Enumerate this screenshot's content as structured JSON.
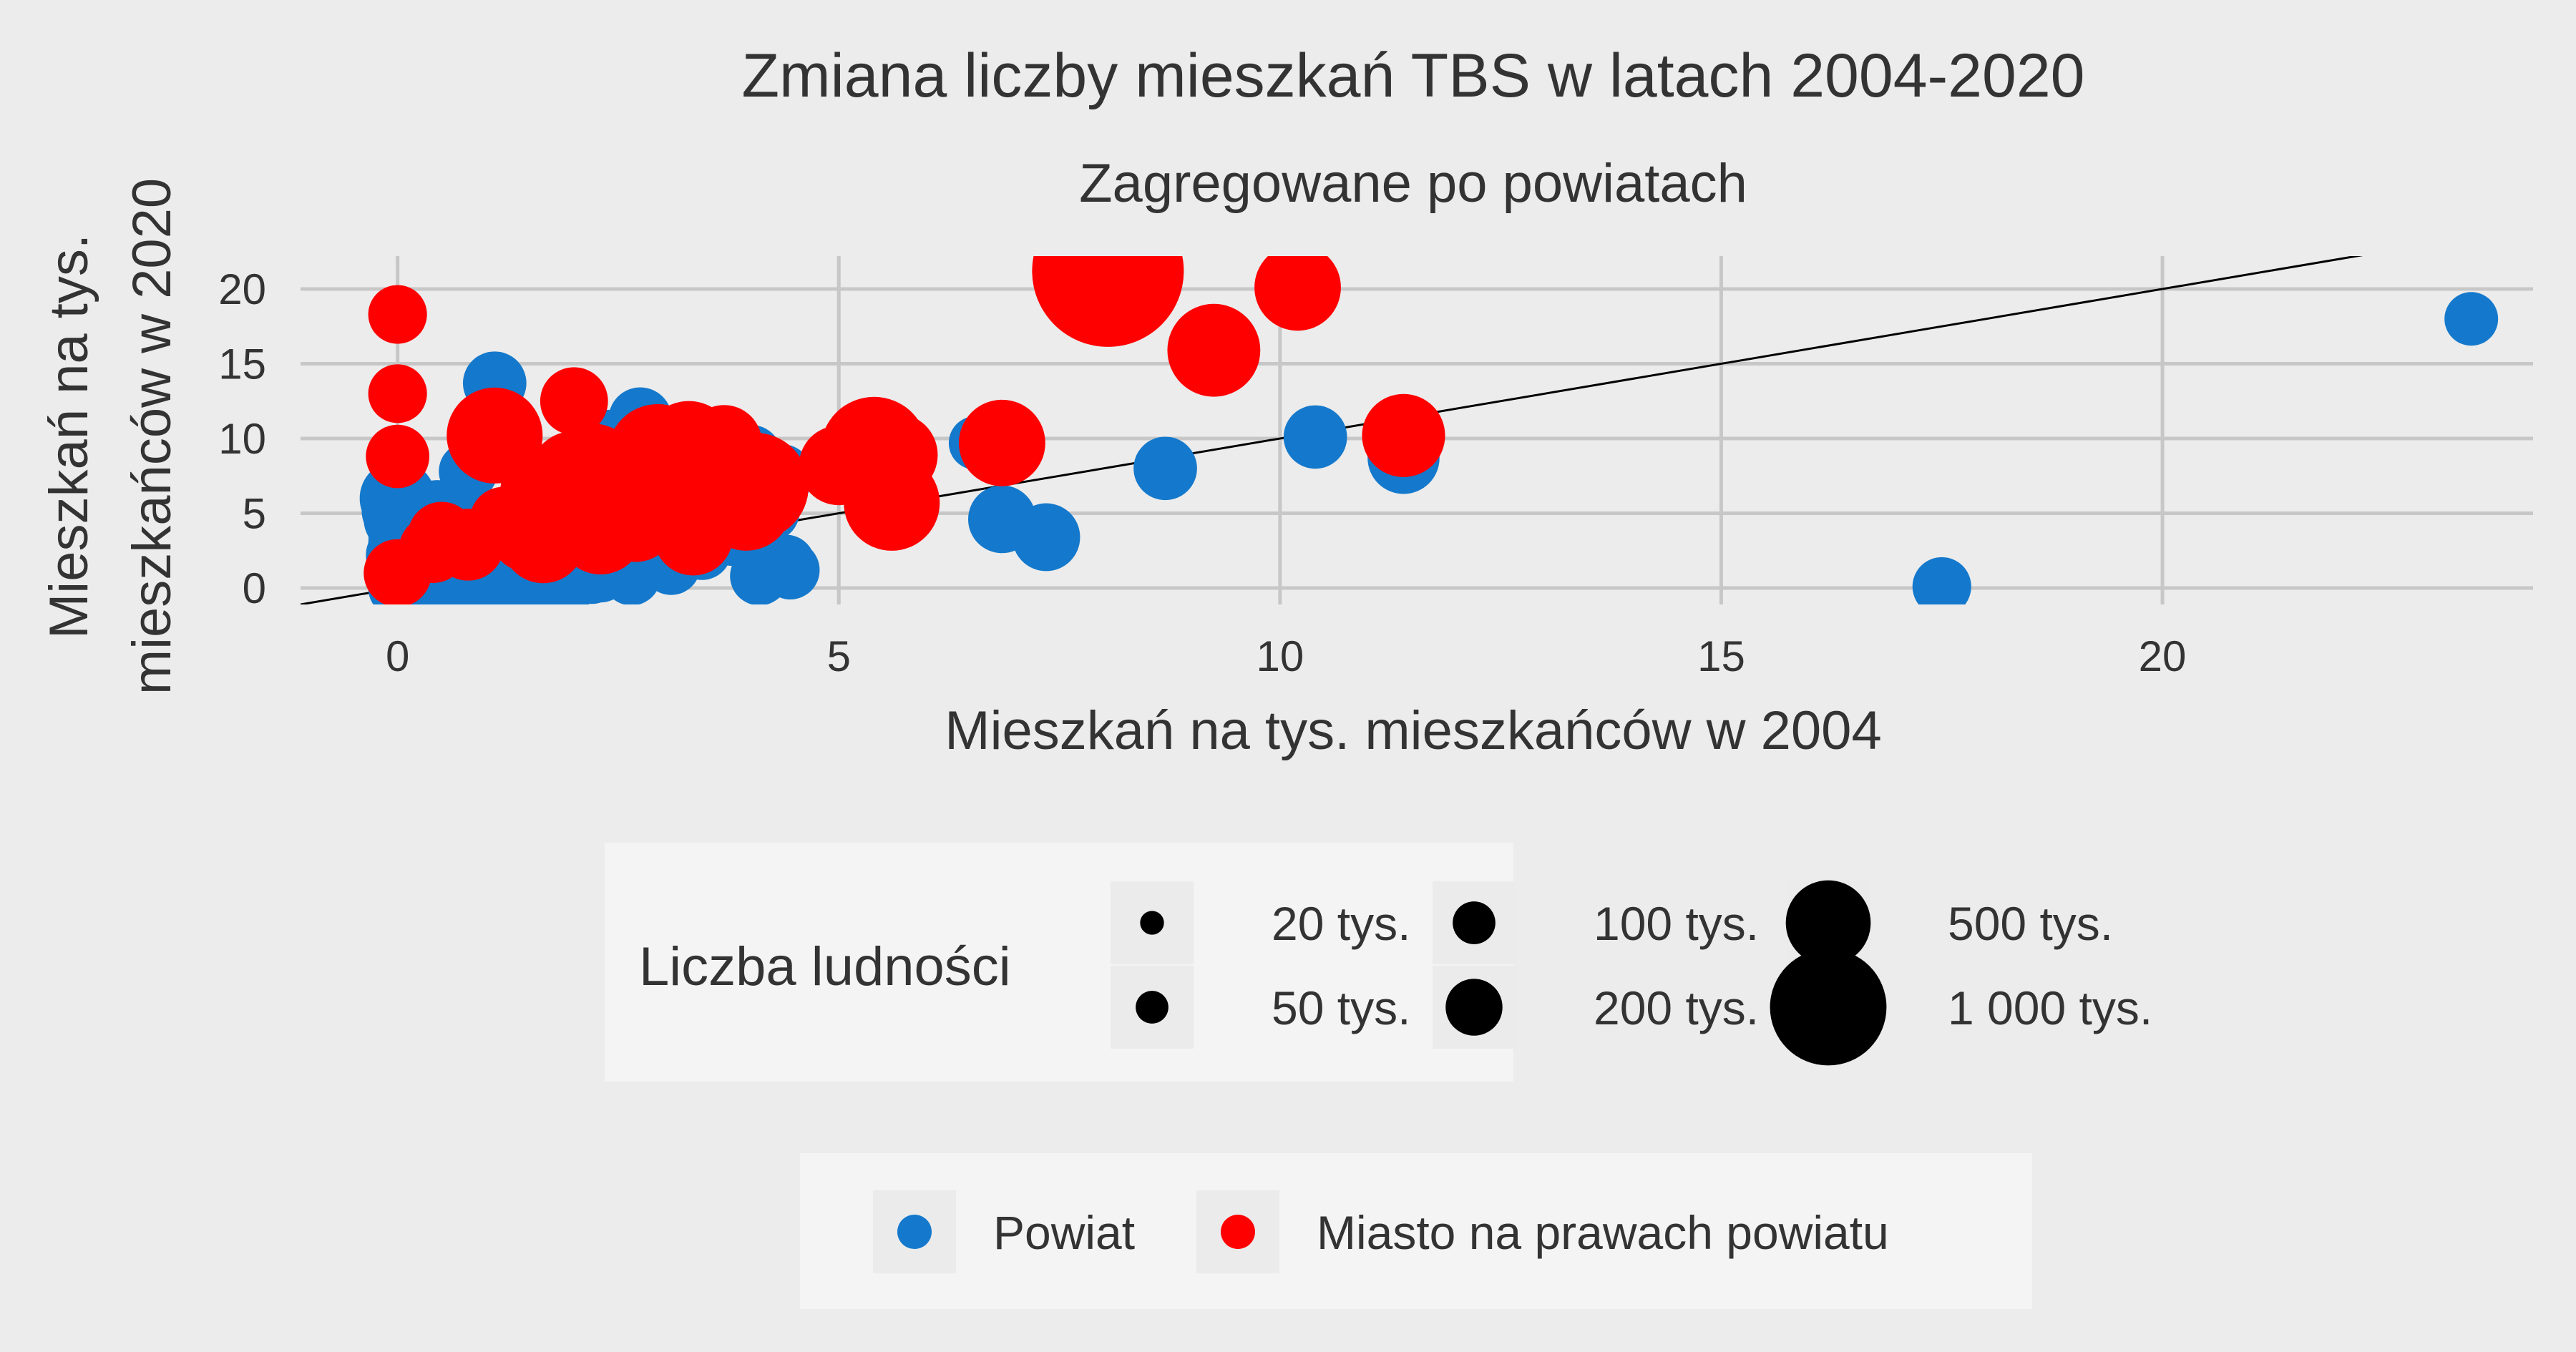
{
  "chart_data": {
    "type": "scatter",
    "title": "Zmiana liczby mieszkań TBS w latach 2004-2020",
    "subtitle": "Zagregowane po powiatach",
    "xlabel": "Mieszkań na tys. mieszkańców w 2004",
    "ylabel_lines": [
      "Mieszkań na tys.",
      "mieszkańców w 2020"
    ],
    "xlim": [
      -1.1,
      24.2
    ],
    "ylim": [
      -1.1,
      22.2
    ],
    "x_ticks": [
      0,
      5,
      10,
      15,
      20
    ],
    "y_ticks": [
      0,
      5,
      10,
      15,
      20
    ],
    "grid": true,
    "reference_line": "y = x",
    "size_legend": {
      "title": "Liczba ludności",
      "entries": [
        {
          "label": "20 tys.",
          "population_k": 20
        },
        {
          "label": "50 tys.",
          "population_k": 50
        },
        {
          "label": "100 tys.",
          "population_k": 100
        },
        {
          "label": "200 tys.",
          "population_k": 200
        },
        {
          "label": "500 tys.",
          "population_k": 500
        },
        {
          "label": "1 000 tys.",
          "population_k": 1000
        }
      ]
    },
    "color_legend": {
      "entries": [
        {
          "label": "Powiat",
          "color": "#1479cc"
        },
        {
          "label": "Miasto na prawach powiatu",
          "color": "#ff0000"
        }
      ]
    },
    "series": [
      {
        "name": "Powiat",
        "color": "#1479cc",
        "points": [
          [
            0,
            0,
            60
          ],
          [
            0,
            0.5,
            60
          ],
          [
            0,
            1,
            70
          ],
          [
            0,
            1.5,
            60
          ],
          [
            0,
            2.2,
            70
          ],
          [
            0,
            3,
            60
          ],
          [
            0,
            3.6,
            60
          ],
          [
            0,
            4.6,
            80
          ],
          [
            0,
            5.2,
            90
          ],
          [
            0,
            6,
            100
          ],
          [
            0.1,
            0.3,
            60
          ],
          [
            0.15,
            1.8,
            60
          ],
          [
            0.2,
            0.1,
            50
          ],
          [
            0.25,
            2.6,
            60
          ],
          [
            0.3,
            0.5,
            60
          ],
          [
            0.3,
            1.2,
            60
          ],
          [
            0.35,
            2.0,
            60
          ],
          [
            0.4,
            0.2,
            50
          ],
          [
            0.4,
            3.0,
            60
          ],
          [
            0.45,
            5.1,
            70
          ],
          [
            0.5,
            0.8,
            60
          ],
          [
            0.5,
            1.6,
            60
          ],
          [
            0.55,
            2.4,
            60
          ],
          [
            0.6,
            0.3,
            60
          ],
          [
            0.65,
            1.1,
            60
          ],
          [
            0.7,
            2.0,
            70
          ],
          [
            0.7,
            0.1,
            50
          ],
          [
            0.75,
            3.0,
            60
          ],
          [
            0.8,
            0.6,
            60
          ],
          [
            0.8,
            1.4,
            60
          ],
          [
            0.8,
            7.8,
            60
          ],
          [
            0.85,
            2.2,
            60
          ],
          [
            0.9,
            0.2,
            60
          ],
          [
            0.9,
            4.5,
            70
          ],
          [
            0.95,
            1.0,
            60
          ],
          [
            1.0,
            1.8,
            70
          ],
          [
            1.0,
            2.6,
            60
          ],
          [
            1.0,
            0.4,
            50
          ],
          [
            1.05,
            3.4,
            60
          ],
          [
            1.1,
            13.7,
            70
          ],
          [
            1.1,
            11.3,
            60
          ],
          [
            1.1,
            0.9,
            60
          ],
          [
            1.15,
            1.5,
            60
          ],
          [
            1.2,
            2.2,
            70
          ],
          [
            1.2,
            0.1,
            50
          ],
          [
            1.25,
            3.9,
            60
          ],
          [
            1.3,
            0.6,
            60
          ],
          [
            1.3,
            1.3,
            60
          ],
          [
            1.35,
            2.8,
            60
          ],
          [
            1.4,
            0.3,
            60
          ],
          [
            1.4,
            1.9,
            60
          ],
          [
            1.45,
            1.0,
            60
          ],
          [
            1.5,
            2.5,
            60
          ],
          [
            1.5,
            0.2,
            50
          ],
          [
            1.55,
            3.6,
            60
          ],
          [
            1.6,
            1.4,
            60
          ],
          [
            1.6,
            0.5,
            60
          ],
          [
            1.65,
            2.0,
            60
          ],
          [
            1.7,
            0.8,
            60
          ],
          [
            1.75,
            3.1,
            60
          ],
          [
            1.8,
            0.1,
            50
          ],
          [
            1.8,
            4.8,
            60
          ],
          [
            1.85,
            1.6,
            60
          ],
          [
            1.9,
            2.4,
            60
          ],
          [
            1.95,
            0.4,
            60
          ],
          [
            2.0,
            3.8,
            70
          ],
          [
            2.0,
            8.1,
            70
          ],
          [
            2.05,
            1.2,
            60
          ],
          [
            2.1,
            2.8,
            60
          ],
          [
            2.2,
            0.9,
            60
          ],
          [
            2.25,
            6.5,
            60
          ],
          [
            2.3,
            1.0,
            60
          ],
          [
            2.4,
            9.8,
            70
          ],
          [
            2.45,
            5.8,
            70
          ],
          [
            2.5,
            3.6,
            60
          ],
          [
            2.65,
            0.8,
            60
          ],
          [
            2.7,
            5.5,
            60
          ],
          [
            2.75,
            11.3,
            70
          ],
          [
            2.8,
            7.0,
            60
          ],
          [
            2.9,
            5.0,
            60
          ],
          [
            3.0,
            4.2,
            70
          ],
          [
            3.1,
            1.5,
            60
          ],
          [
            3.2,
            2.3,
            60
          ],
          [
            3.25,
            4.8,
            60
          ],
          [
            3.3,
            10.3,
            70
          ],
          [
            3.35,
            7.8,
            60
          ],
          [
            3.45,
            2.5,
            60
          ],
          [
            3.55,
            6.4,
            70
          ],
          [
            3.65,
            4.8,
            60
          ],
          [
            3.7,
            8.6,
            60
          ],
          [
            3.8,
            3.6,
            70
          ],
          [
            3.9,
            8.5,
            60
          ],
          [
            3.95,
            3.4,
            60
          ],
          [
            4.0,
            8.8,
            70
          ],
          [
            4.05,
            3.6,
            60
          ],
          [
            4.1,
            0.8,
            60
          ],
          [
            4.15,
            1.7,
            60
          ],
          [
            4.2,
            5.2,
            70
          ],
          [
            4.35,
            7.5,
            70
          ],
          [
            4.4,
            1.6,
            60
          ],
          [
            4.45,
            1.2,
            60
          ],
          [
            6.55,
            9.7,
            50
          ],
          [
            6.85,
            4.6,
            80
          ],
          [
            7.35,
            3.4,
            80
          ],
          [
            8.7,
            8.0,
            70
          ],
          [
            10.4,
            10.1,
            70
          ],
          [
            11.4,
            8.7,
            90
          ],
          [
            17.5,
            0.1,
            60
          ],
          [
            23.5,
            18.0,
            50
          ]
        ]
      },
      {
        "name": "Miasto na prawach powiatu",
        "color": "#ff0000",
        "points": [
          [
            0,
            18.3,
            60
          ],
          [
            0,
            13.0,
            60
          ],
          [
            0,
            8.8,
            70
          ],
          [
            0,
            1.0,
            80
          ],
          [
            0.4,
            2.6,
            80
          ],
          [
            0.5,
            3.5,
            80
          ],
          [
            0.8,
            2.9,
            90
          ],
          [
            1.1,
            10.2,
            160
          ],
          [
            1.2,
            4.5,
            80
          ],
          [
            1.4,
            4.2,
            100
          ],
          [
            1.5,
            3.8,
            120
          ],
          [
            1.55,
            6.6,
            80
          ],
          [
            1.65,
            3.1,
            120
          ],
          [
            1.7,
            5.2,
            90
          ],
          [
            1.8,
            4.7,
            100
          ],
          [
            2.0,
            12.5,
            80
          ],
          [
            2.0,
            7.5,
            140
          ],
          [
            2.1,
            6.8,
            110
          ],
          [
            2.2,
            7.6,
            180
          ],
          [
            2.3,
            3.8,
            130
          ],
          [
            2.4,
            7.2,
            110
          ],
          [
            2.6,
            5.0,
            130
          ],
          [
            2.7,
            4.4,
            110
          ],
          [
            2.85,
            8.3,
            120
          ],
          [
            2.95,
            8.9,
            180
          ],
          [
            3.1,
            8.1,
            110
          ],
          [
            3.3,
            9.4,
            150
          ],
          [
            3.35,
            3.5,
            110
          ],
          [
            3.4,
            7.4,
            180
          ],
          [
            3.45,
            6.9,
            250
          ],
          [
            3.7,
            9.7,
            100
          ],
          [
            3.9,
            6.5,
            120
          ],
          [
            3.95,
            5.6,
            150
          ],
          [
            4.05,
            6.8,
            200
          ],
          [
            5.0,
            8.2,
            110
          ],
          [
            5.4,
            9.2,
            200
          ],
          [
            5.6,
            5.7,
            160
          ],
          [
            5.65,
            8.9,
            120
          ],
          [
            6.85,
            9.7,
            130
          ],
          [
            8.05,
            21.2,
            400
          ],
          [
            9.25,
            15.9,
            150
          ],
          [
            10.2,
            20.1,
            130
          ],
          [
            11.4,
            10.2,
            120
          ]
        ]
      }
    ]
  }
}
